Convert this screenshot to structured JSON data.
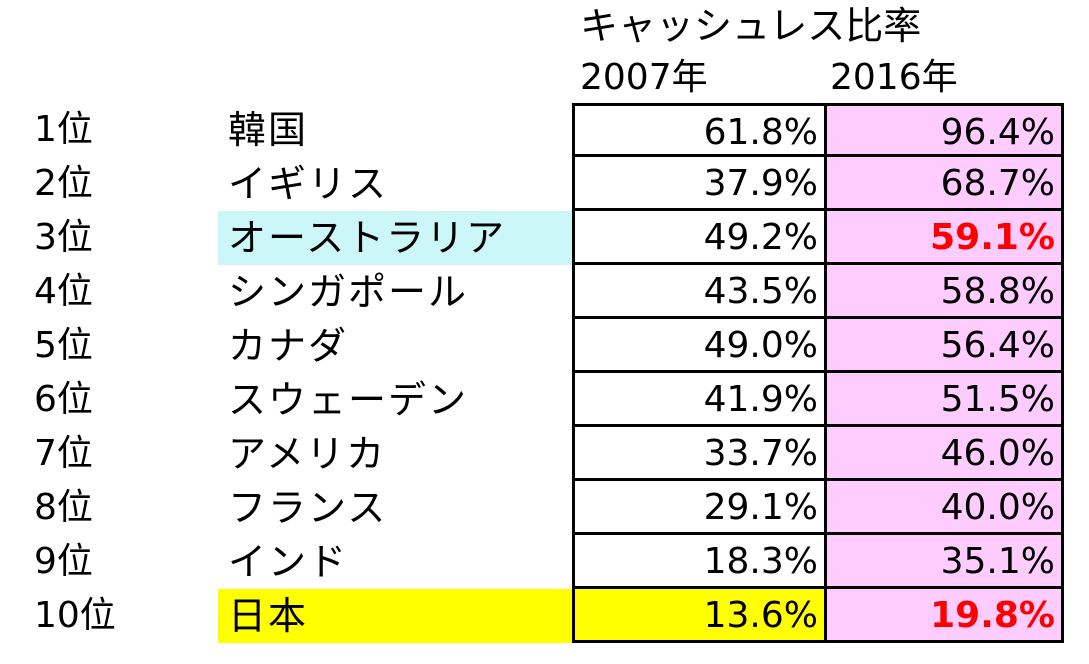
{
  "header": {
    "title": "キャッシュレス比率",
    "year_2007": "2007年",
    "year_2016": "2016年"
  },
  "colors": {
    "highlight_cyan": "#ccf7f8",
    "highlight_yellow": "#ffff00",
    "column_2016_bg": "#ffccff",
    "emphasis_red": "#ff0000"
  },
  "rows": [
    {
      "rank": "1位",
      "country": "韓国",
      "v2007": "61.8%",
      "v2016": "96.4%"
    },
    {
      "rank": "2位",
      "country": "イギリス",
      "v2007": "37.9%",
      "v2016": "68.7%"
    },
    {
      "rank": "3位",
      "country": "オーストラリア",
      "v2007": "49.2%",
      "v2016": "59.1%"
    },
    {
      "rank": "4位",
      "country": "シンガポール",
      "v2007": "43.5%",
      "v2016": "58.8%"
    },
    {
      "rank": "5位",
      "country": "カナダ",
      "v2007": "49.0%",
      "v2016": "56.4%"
    },
    {
      "rank": "6位",
      "country": "スウェーデン",
      "v2007": "41.9%",
      "v2016": "51.5%"
    },
    {
      "rank": "7位",
      "country": "アメリカ",
      "v2007": "33.7%",
      "v2016": "46.0%"
    },
    {
      "rank": "8位",
      "country": "フランス",
      "v2007": "29.1%",
      "v2016": "40.0%"
    },
    {
      "rank": "9位",
      "country": "インド",
      "v2007": "18.3%",
      "v2016": "35.1%"
    },
    {
      "rank": "10位",
      "country": "日本",
      "v2007": "13.6%",
      "v2016": "19.8%"
    }
  ]
}
